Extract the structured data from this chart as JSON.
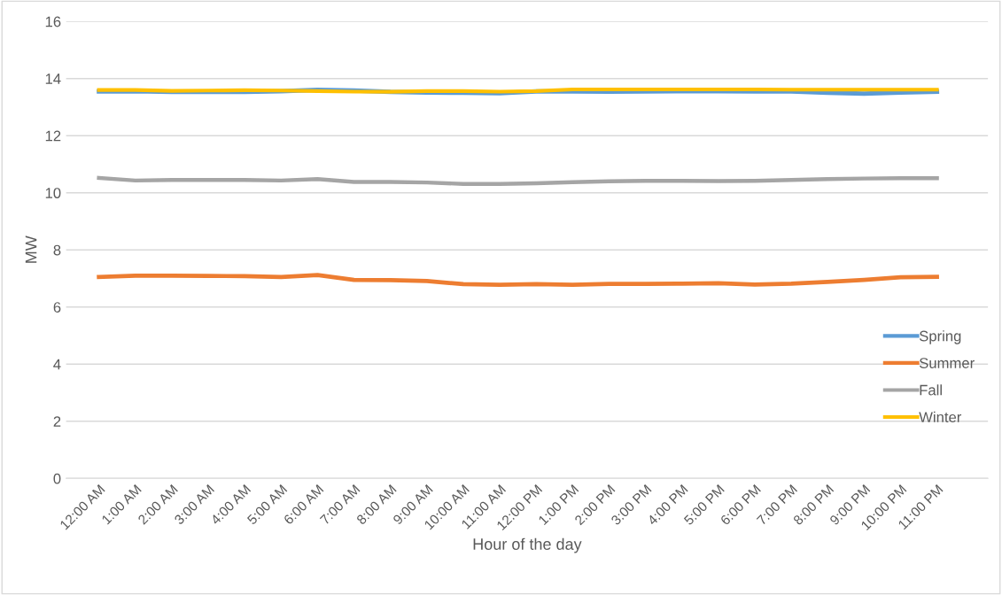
{
  "chart_data": {
    "type": "line",
    "xlabel": "Hour of the day",
    "ylabel": "MW",
    "categories": [
      "12:00 AM",
      "1:00 AM",
      "2:00 AM",
      "3:00 AM",
      "4:00 AM",
      "5:00 AM",
      "6:00 AM",
      "7:00 AM",
      "8:00 AM",
      "9:00 AM",
      "10:00 AM",
      "11:00 AM",
      "12:00 PM",
      "1:00 PM",
      "2:00 PM",
      "3:00 PM",
      "4:00 PM",
      "5:00 PM",
      "6:00 PM",
      "7:00 PM",
      "8:00 PM",
      "9:00 PM",
      "10:00 PM",
      "11:00 PM"
    ],
    "series": [
      {
        "name": "Spring",
        "color": "#5b9bd5",
        "values": [
          13.55,
          13.56,
          13.53,
          13.53,
          13.53,
          13.56,
          13.6,
          13.58,
          13.53,
          13.51,
          13.5,
          13.49,
          13.55,
          13.55,
          13.54,
          13.55,
          13.56,
          13.56,
          13.55,
          13.55,
          13.5,
          13.47,
          13.51,
          13.54
        ]
      },
      {
        "name": "Summer",
        "color": "#ed7d31",
        "values": [
          7.05,
          7.1,
          7.1,
          7.09,
          7.08,
          7.05,
          7.12,
          6.95,
          6.94,
          6.91,
          6.8,
          6.78,
          6.8,
          6.78,
          6.81,
          6.81,
          6.82,
          6.83,
          6.79,
          6.82,
          6.88,
          6.95,
          7.04,
          7.06
        ]
      },
      {
        "name": "Fall",
        "color": "#a5a5a5",
        "values": [
          10.52,
          10.43,
          10.45,
          10.45,
          10.45,
          10.43,
          10.48,
          10.38,
          10.38,
          10.36,
          10.31,
          10.31,
          10.33,
          10.37,
          10.4,
          10.42,
          10.42,
          10.41,
          10.42,
          10.45,
          10.48,
          10.5,
          10.51,
          10.51
        ]
      },
      {
        "name": "Winter",
        "color": "#ffc000",
        "values": [
          13.6,
          13.6,
          13.57,
          13.58,
          13.59,
          13.58,
          13.56,
          13.54,
          13.54,
          13.56,
          13.56,
          13.54,
          13.56,
          13.62,
          13.62,
          13.62,
          13.62,
          13.62,
          13.62,
          13.61,
          13.61,
          13.61,
          13.61,
          13.61
        ]
      }
    ],
    "ylim": [
      0,
      16
    ],
    "yticks": [
      0,
      2,
      4,
      6,
      8,
      10,
      12,
      14,
      16
    ],
    "grid": "y",
    "legend": "right",
    "marker": "none",
    "line_style": "solid"
  }
}
